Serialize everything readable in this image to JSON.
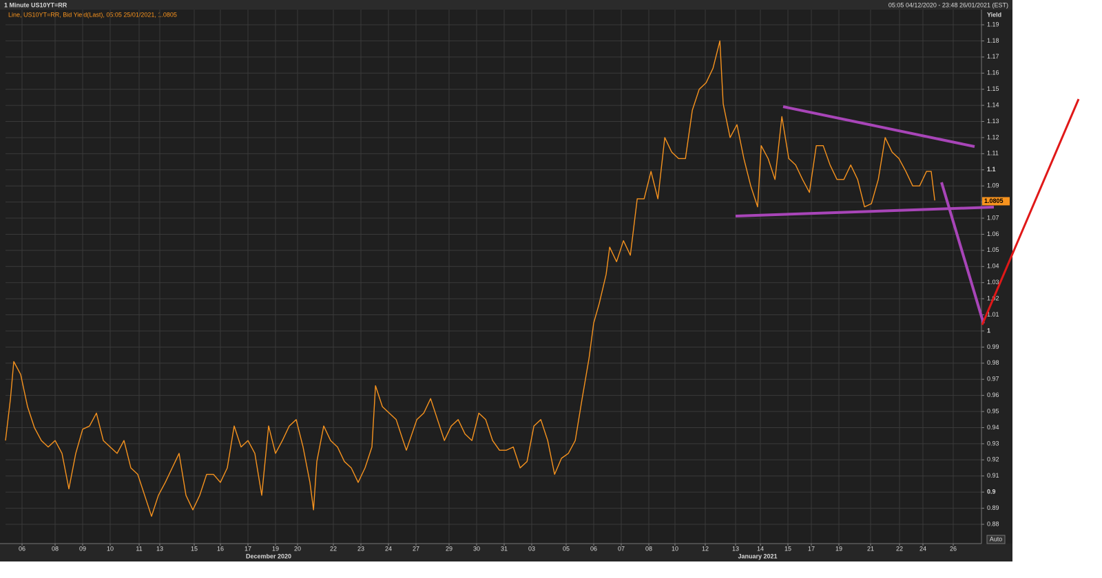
{
  "chart_data": {
    "type": "line",
    "title": "1 Minute US10YT=RR",
    "subtitle": "05:05 04/12/2020 - 23:48 26/01/2021 (EST)",
    "legend_text": "Line, US10YT=RR, Bid Yield(Last), 05:05 25/01/2021, 1.0805",
    "y_axis_label": "Yield",
    "auto_button": "Auto",
    "last_value": 1.0805,
    "grid": true,
    "xlim": [
      0,
      35.5
    ],
    "ylim": [
      0.87,
      1.2
    ],
    "yticks": [
      0.88,
      0.89,
      0.9,
      0.91,
      0.92,
      0.93,
      0.94,
      0.95,
      0.96,
      0.97,
      0.98,
      0.99,
      1,
      1.01,
      1.02,
      1.03,
      1.04,
      1.05,
      1.06,
      1.07,
      1.08,
      1.09,
      1.1,
      1.11,
      1.12,
      1.13,
      1.14,
      1.15,
      1.16,
      1.17,
      1.18,
      1.19
    ],
    "xticks": [
      {
        "value": 0.6,
        "label": "06"
      },
      {
        "value": 1.8,
        "label": "08"
      },
      {
        "value": 2.8,
        "label": "09"
      },
      {
        "value": 3.8,
        "label": "10"
      },
      {
        "value": 4.85,
        "label": "11"
      },
      {
        "value": 5.6,
        "label": "13"
      },
      {
        "value": 6.85,
        "label": "15"
      },
      {
        "value": 7.8,
        "label": "16"
      },
      {
        "value": 8.8,
        "label": "17"
      },
      {
        "value": 9.8,
        "label": "19"
      },
      {
        "value": 10.6,
        "label": "20"
      },
      {
        "value": 11.9,
        "label": "22"
      },
      {
        "value": 12.9,
        "label": "23"
      },
      {
        "value": 13.9,
        "label": "24"
      },
      {
        "value": 14.9,
        "label": "27"
      },
      {
        "value": 16.1,
        "label": "29"
      },
      {
        "value": 17.1,
        "label": "30"
      },
      {
        "value": 18.1,
        "label": "31"
      },
      {
        "value": 19.1,
        "label": "03"
      },
      {
        "value": 20.35,
        "label": "05"
      },
      {
        "value": 21.35,
        "label": "06"
      },
      {
        "value": 22.35,
        "label": "07"
      },
      {
        "value": 23.35,
        "label": "08"
      },
      {
        "value": 24.3,
        "label": "10"
      },
      {
        "value": 25.4,
        "label": "12"
      },
      {
        "value": 26.5,
        "label": "13"
      },
      {
        "value": 27.4,
        "label": "14"
      },
      {
        "value": 28.4,
        "label": "15"
      },
      {
        "value": 29.25,
        "label": "17"
      },
      {
        "value": 30.25,
        "label": "19"
      },
      {
        "value": 31.4,
        "label": "21"
      },
      {
        "value": 32.45,
        "label": "22"
      },
      {
        "value": 33.3,
        "label": "24"
      },
      {
        "value": 34.4,
        "label": "26"
      }
    ],
    "x_group_labels": [
      {
        "value": 9.55,
        "label": "December 2020"
      },
      {
        "value": 27.3,
        "label": "January 2021"
      }
    ],
    "x": [
      0,
      0.18,
      0.3,
      0.55,
      0.8,
      1.05,
      1.3,
      1.55,
      1.8,
      2.05,
      2.3,
      2.55,
      2.8,
      3.05,
      3.3,
      3.55,
      3.8,
      4.05,
      4.3,
      4.55,
      4.8,
      5.05,
      5.3,
      5.55,
      5.8,
      6.05,
      6.3,
      6.55,
      6.8,
      7.05,
      7.3,
      7.55,
      7.8,
      8.05,
      8.3,
      8.55,
      8.8,
      9.05,
      9.3,
      9.55,
      9.8,
      10.05,
      10.3,
      10.55,
      10.8,
      11.05,
      11.18,
      11.3,
      11.55,
      11.8,
      12.05,
      12.3,
      12.55,
      12.8,
      13.05,
      13.3,
      13.43,
      13.68,
      13.93,
      14.18,
      14.43,
      14.55,
      14.93,
      15.18,
      15.43,
      15.68,
      15.93,
      16.18,
      16.43,
      16.68,
      16.93,
      17.18,
      17.43,
      17.68,
      17.93,
      18.18,
      18.43,
      18.68,
      18.93,
      19.18,
      19.43,
      19.68,
      19.93,
      20.18,
      20.43,
      20.68,
      20.93,
      21.18,
      21.35,
      21.55,
      21.8,
      21.93,
      22.18,
      22.43,
      22.68,
      22.93,
      23.18,
      23.43,
      23.68,
      23.93,
      24.18,
      24.43,
      24.68,
      24.93,
      25.18,
      25.43,
      25.68,
      25.93,
      26.05,
      26.3,
      26.55,
      26.8,
      27.05,
      27.3,
      27.43,
      27.68,
      27.93,
      28.18,
      28.43,
      28.68,
      28.93,
      29.18,
      29.43,
      29.68,
      29.93,
      30.18,
      30.43,
      30.68,
      30.93,
      31.18,
      31.43,
      31.68,
      31.93,
      32.18,
      32.43,
      32.68,
      32.93,
      33.18,
      33.43,
      33.6,
      33.73
    ],
    "series": [
      {
        "name": "US10YT=RR",
        "color": "#f7931e",
        "values": [
          0.932,
          0.958,
          0.981,
          0.973,
          0.953,
          0.94,
          0.932,
          0.928,
          0.932,
          0.924,
          0.902,
          0.924,
          0.939,
          0.941,
          0.949,
          0.932,
          0.928,
          0.924,
          0.932,
          0.915,
          0.911,
          0.898,
          0.885,
          0.898,
          0.906,
          0.915,
          0.924,
          0.898,
          0.889,
          0.898,
          0.911,
          0.911,
          0.906,
          0.915,
          0.941,
          0.928,
          0.932,
          0.924,
          0.898,
          0.941,
          0.924,
          0.932,
          0.941,
          0.945,
          0.928,
          0.906,
          0.889,
          0.919,
          0.941,
          0.932,
          0.928,
          0.919,
          0.915,
          0.906,
          0.915,
          0.928,
          0.966,
          0.953,
          0.949,
          0.945,
          0.932,
          0.926,
          0.945,
          0.949,
          0.958,
          0.945,
          0.932,
          0.941,
          0.945,
          0.936,
          0.932,
          0.949,
          0.945,
          0.932,
          0.926,
          0.926,
          0.928,
          0.915,
          0.919,
          0.941,
          0.945,
          0.932,
          0.911,
          0.921,
          0.924,
          0.932,
          0.958,
          0.983,
          1.005,
          1.017,
          1.035,
          1.052,
          1.043,
          1.056,
          1.047,
          1.082,
          1.082,
          1.099,
          1.082,
          1.12,
          1.111,
          1.107,
          1.107,
          1.137,
          1.15,
          1.154,
          1.163,
          1.18,
          1.141,
          1.12,
          1.128,
          1.107,
          1.09,
          1.077,
          1.115,
          1.107,
          1.094,
          1.133,
          1.107,
          1.103,
          1.094,
          1.086,
          1.115,
          1.115,
          1.103,
          1.094,
          1.094,
          1.103,
          1.094,
          1.077,
          1.079,
          1.094,
          1.12,
          1.111,
          1.107,
          1.099,
          1.09,
          1.09,
          1.099,
          1.099,
          1.081
        ]
      }
    ]
  }
}
